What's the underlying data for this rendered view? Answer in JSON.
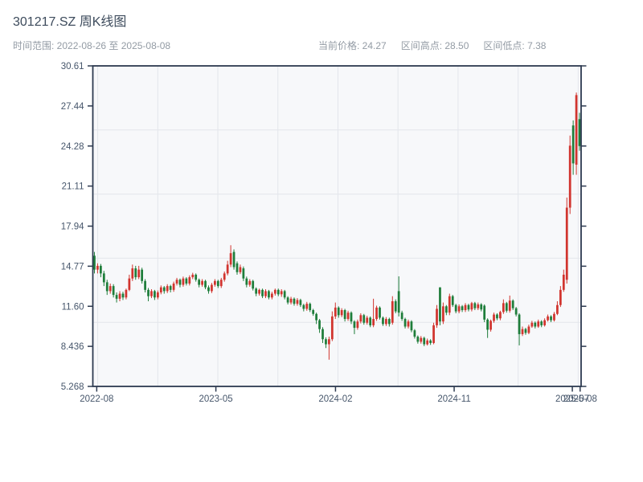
{
  "header": {
    "title": "301217.SZ 周K线图",
    "time_range": "时间范围: 2022-08-26 至 2025-08-08",
    "current_price": "当前价格: 24.27",
    "range_high": "区间高点: 28.50",
    "range_low": "区间低点: 7.38"
  },
  "chart_data": {
    "type": "candlestick",
    "symbol": "301217.SZ",
    "period": "weekly",
    "title": "301217.SZ 周K线图",
    "start_date": "2022-08-26",
    "end_date": "2025-08-08",
    "current_price": 24.27,
    "range_high": 28.5,
    "range_low": 7.38,
    "ylim": [
      5.268,
      30.61
    ],
    "grid": "on",
    "y_tick_labels": [
      "30.61",
      "27.44",
      "24.28",
      "21.11",
      "17.94",
      "14.77",
      "11.60",
      "8.436",
      "5.268"
    ],
    "x_ticks": [
      {
        "label": "2022-08",
        "pos": 0.008
      },
      {
        "label": "2023-05",
        "pos": 0.252
      },
      {
        "label": "2024-02",
        "pos": 0.497
      },
      {
        "label": "2024-11",
        "pos": 0.74
      },
      {
        "label": "2025-07",
        "pos": 0.982
      },
      {
        "label": "2025-08",
        "pos": 0.998
      }
    ],
    "up_color": "#d1342e",
    "down_color": "#1e7d3a",
    "candles_ohlc": [
      [
        15.6,
        15.9,
        14.2,
        14.5
      ],
      [
        14.5,
        15.0,
        14.2,
        14.8
      ],
      [
        14.8,
        14.95,
        13.9,
        14.2
      ],
      [
        14.2,
        14.4,
        13.2,
        13.5
      ],
      [
        13.5,
        13.7,
        12.5,
        12.8
      ],
      [
        12.8,
        13.4,
        12.6,
        13.2
      ],
      [
        13.2,
        13.35,
        12.3,
        12.5
      ],
      [
        12.5,
        12.7,
        11.9,
        12.2
      ],
      [
        12.2,
        12.8,
        12.0,
        12.6
      ],
      [
        12.6,
        12.75,
        12.1,
        12.3
      ],
      [
        12.3,
        13.0,
        12.15,
        12.9
      ],
      [
        12.9,
        14.1,
        12.8,
        13.8
      ],
      [
        13.8,
        14.9,
        13.6,
        14.6
      ],
      [
        14.6,
        14.8,
        13.7,
        13.9
      ],
      [
        13.9,
        14.8,
        13.75,
        14.5
      ],
      [
        14.5,
        14.65,
        13.4,
        13.6
      ],
      [
        13.6,
        13.75,
        12.7,
        12.9
      ],
      [
        12.9,
        13.05,
        12.0,
        12.4
      ],
      [
        12.4,
        12.95,
        12.25,
        12.8
      ],
      [
        12.8,
        12.9,
        12.1,
        12.3
      ],
      [
        12.3,
        12.85,
        12.15,
        12.7
      ],
      [
        12.7,
        13.25,
        12.55,
        13.1
      ],
      [
        13.1,
        13.2,
        12.6,
        12.8
      ],
      [
        12.8,
        13.35,
        12.65,
        13.2
      ],
      [
        13.2,
        13.3,
        12.7,
        12.9
      ],
      [
        12.9,
        13.55,
        12.75,
        13.4
      ],
      [
        13.4,
        13.85,
        13.25,
        13.7
      ],
      [
        13.7,
        13.8,
        13.1,
        13.3
      ],
      [
        13.3,
        13.95,
        13.15,
        13.8
      ],
      [
        13.8,
        13.9,
        13.25,
        13.4
      ],
      [
        13.4,
        14.05,
        13.25,
        13.9
      ],
      [
        13.9,
        14.25,
        13.75,
        14.1
      ],
      [
        14.1,
        14.2,
        13.55,
        13.7
      ],
      [
        13.7,
        13.8,
        13.1,
        13.3
      ],
      [
        13.3,
        13.75,
        13.15,
        13.6
      ],
      [
        13.6,
        13.7,
        12.95,
        13.1
      ],
      [
        13.1,
        13.25,
        12.6,
        12.8
      ],
      [
        12.8,
        13.45,
        12.65,
        13.3
      ],
      [
        13.3,
        13.75,
        13.15,
        13.6
      ],
      [
        13.6,
        13.7,
        13.05,
        13.2
      ],
      [
        13.2,
        13.85,
        13.05,
        13.7
      ],
      [
        13.7,
        14.35,
        13.55,
        14.2
      ],
      [
        14.2,
        15.2,
        14.05,
        14.9
      ],
      [
        14.9,
        16.43,
        14.7,
        15.8
      ],
      [
        15.9,
        16.1,
        14.5,
        14.7
      ],
      [
        15.0,
        15.15,
        14.1,
        14.3
      ],
      [
        14.3,
        14.9,
        14.15,
        14.7
      ],
      [
        14.6,
        14.75,
        13.6,
        13.8
      ],
      [
        13.8,
        13.95,
        13.1,
        13.3
      ],
      [
        13.3,
        13.75,
        13.15,
        13.6
      ],
      [
        13.6,
        13.7,
        12.85,
        13.0
      ],
      [
        13.0,
        13.1,
        12.4,
        12.6
      ],
      [
        12.6,
        13.0,
        12.45,
        12.9
      ],
      [
        12.9,
        13.0,
        12.25,
        12.4
      ],
      [
        12.4,
        12.95,
        12.25,
        12.8
      ],
      [
        12.8,
        12.9,
        12.15,
        12.3
      ],
      [
        12.3,
        12.75,
        12.15,
        12.6
      ],
      [
        12.6,
        13.0,
        12.45,
        12.9
      ],
      [
        12.9,
        13.0,
        12.4,
        12.55
      ],
      [
        12.55,
        12.95,
        12.35,
        12.8
      ],
      [
        12.8,
        12.9,
        12.15,
        12.3
      ],
      [
        12.3,
        12.4,
        11.75,
        11.9
      ],
      [
        11.9,
        12.35,
        11.75,
        12.2
      ],
      [
        12.2,
        12.3,
        11.65,
        11.8
      ],
      [
        11.8,
        12.25,
        11.65,
        12.1
      ],
      [
        12.1,
        12.2,
        11.55,
        11.7
      ],
      [
        11.7,
        11.8,
        11.2,
        11.4
      ],
      [
        11.4,
        11.95,
        11.25,
        11.8
      ],
      [
        11.8,
        11.9,
        11.15,
        11.3
      ],
      [
        11.3,
        11.4,
        10.85,
        11.0
      ],
      [
        11.0,
        11.1,
        10.2,
        10.5
      ],
      [
        10.5,
        10.6,
        9.5,
        9.8
      ],
      [
        9.8,
        9.95,
        8.7,
        9.0
      ],
      [
        9.0,
        9.15,
        8.3,
        8.6
      ],
      [
        8.6,
        9.2,
        7.38,
        9.0
      ],
      [
        9.0,
        11.2,
        8.85,
        10.8
      ],
      [
        10.8,
        11.9,
        10.6,
        11.5
      ],
      [
        11.5,
        11.6,
        10.7,
        10.9
      ],
      [
        10.9,
        11.45,
        10.75,
        11.3
      ],
      [
        11.3,
        11.4,
        10.4,
        10.6
      ],
      [
        10.6,
        11.25,
        10.45,
        11.1
      ],
      [
        11.1,
        11.2,
        10.2,
        10.4
      ],
      [
        10.4,
        10.5,
        9.4,
        9.9
      ],
      [
        9.9,
        10.55,
        9.75,
        10.4
      ],
      [
        10.4,
        11.05,
        10.25,
        10.9
      ],
      [
        10.9,
        11.0,
        10.15,
        10.3
      ],
      [
        10.3,
        10.85,
        10.15,
        10.7
      ],
      [
        10.7,
        10.8,
        9.95,
        10.1
      ],
      [
        10.1,
        12.2,
        9.95,
        10.6
      ],
      [
        10.6,
        11.65,
        10.45,
        11.5
      ],
      [
        11.5,
        11.6,
        10.55,
        10.7
      ],
      [
        10.7,
        10.8,
        10.05,
        10.2
      ],
      [
        10.2,
        10.75,
        10.05,
        10.6
      ],
      [
        10.6,
        10.7,
        10.0,
        10.2
      ],
      [
        10.3,
        12.4,
        10.15,
        12.0
      ],
      [
        12.0,
        12.15,
        11.05,
        11.2
      ],
      [
        12.8,
        13.97,
        10.8,
        11.1
      ],
      [
        11.1,
        11.25,
        10.45,
        10.6
      ],
      [
        10.6,
        10.7,
        9.85,
        10.0
      ],
      [
        10.0,
        10.55,
        9.85,
        10.4
      ],
      [
        10.4,
        10.5,
        9.55,
        9.7
      ],
      [
        9.7,
        9.8,
        9.05,
        9.2
      ],
      [
        9.2,
        9.3,
        8.65,
        8.8
      ],
      [
        8.8,
        9.25,
        8.65,
        9.1
      ],
      [
        9.1,
        9.2,
        8.45,
        8.6
      ],
      [
        8.6,
        9.05,
        8.5,
        8.9
      ],
      [
        8.9,
        9.0,
        8.55,
        8.7
      ],
      [
        8.7,
        10.3,
        8.6,
        10.1
      ],
      [
        10.1,
        11.7,
        9.9,
        11.4
      ],
      [
        13.1,
        13.1,
        10.1,
        10.4
      ],
      [
        10.4,
        11.9,
        10.2,
        11.6
      ],
      [
        11.6,
        11.7,
        10.9,
        11.1
      ],
      [
        11.1,
        12.6,
        10.9,
        12.4
      ],
      [
        12.4,
        12.5,
        11.55,
        11.7
      ],
      [
        11.7,
        11.8,
        11.05,
        11.2
      ],
      [
        11.2,
        11.75,
        11.05,
        11.6
      ],
      [
        11.6,
        11.7,
        11.15,
        11.3
      ],
      [
        11.3,
        11.85,
        11.15,
        11.7
      ],
      [
        11.7,
        11.8,
        11.2,
        11.35
      ],
      [
        11.35,
        11.95,
        11.2,
        11.85
      ],
      [
        11.85,
        11.95,
        11.3,
        11.45
      ],
      [
        11.45,
        11.9,
        11.3,
        11.75
      ],
      [
        11.75,
        11.85,
        11.2,
        11.35
      ],
      [
        11.65,
        11.75,
        10.35,
        10.55
      ],
      [
        10.55,
        10.65,
        9.1,
        9.75
      ],
      [
        9.75,
        10.55,
        9.6,
        10.45
      ],
      [
        10.45,
        11.1,
        10.3,
        10.95
      ],
      [
        10.95,
        11.05,
        10.5,
        10.65
      ],
      [
        10.65,
        11.25,
        10.5,
        11.15
      ],
      [
        11.15,
        12.15,
        11.0,
        11.85
      ],
      [
        11.85,
        11.95,
        11.1,
        11.25
      ],
      [
        11.25,
        12.45,
        11.1,
        12.05
      ],
      [
        12.05,
        12.15,
        11.3,
        11.45
      ],
      [
        11.45,
        11.55,
        10.8,
        10.95
      ],
      [
        10.95,
        11.05,
        8.51,
        9.4
      ],
      [
        9.4,
        10.0,
        9.25,
        9.8
      ],
      [
        9.8,
        9.9,
        9.35,
        9.5
      ],
      [
        9.5,
        10.15,
        9.4,
        10.0
      ],
      [
        10.0,
        10.45,
        9.9,
        10.3
      ],
      [
        10.3,
        10.4,
        9.85,
        10.0
      ],
      [
        10.0,
        10.55,
        9.9,
        10.4
      ],
      [
        10.4,
        10.5,
        9.95,
        10.1
      ],
      [
        10.1,
        10.65,
        10.0,
        10.5
      ],
      [
        10.5,
        10.95,
        10.4,
        10.8
      ],
      [
        10.8,
        10.9,
        10.35,
        10.5
      ],
      [
        10.5,
        11.15,
        10.4,
        11.0
      ],
      [
        11.0,
        12.0,
        10.9,
        11.7
      ],
      [
        11.7,
        13.2,
        11.55,
        12.9
      ],
      [
        12.9,
        14.5,
        12.75,
        14.1
      ],
      [
        13.7,
        20.2,
        13.4,
        19.4
      ],
      [
        19.4,
        25.1,
        18.9,
        24.3
      ],
      [
        25.9,
        26.3,
        22.0,
        22.9
      ],
      [
        22.8,
        28.5,
        22.0,
        28.3
      ],
      [
        26.4,
        26.9,
        23.9,
        24.27
      ]
    ]
  }
}
